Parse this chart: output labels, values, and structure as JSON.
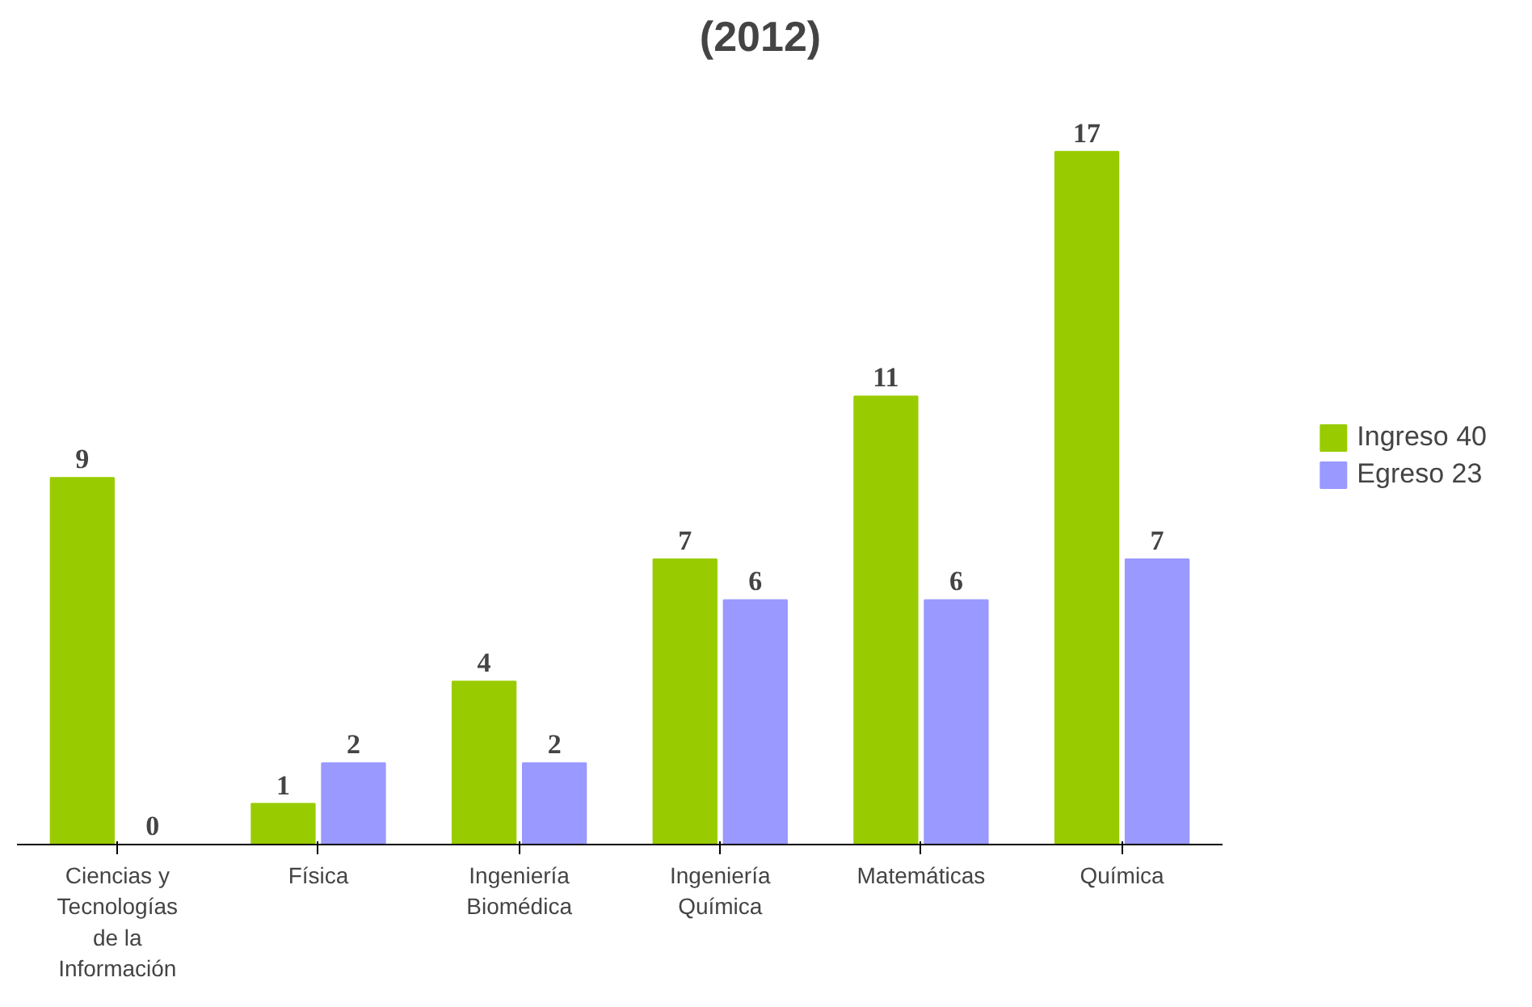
{
  "chart_data": {
    "type": "bar",
    "title": "(2012)",
    "categories": [
      "Ciencias y Tecnologías de la Información",
      "Física",
      "Ingeniería Biomédica",
      "Ingeniería Química",
      "Matemáticas",
      "Química"
    ],
    "series": [
      {
        "name": "Ingreso 40",
        "color": "#99cc00",
        "values": [
          9,
          1,
          4,
          7,
          11,
          17
        ]
      },
      {
        "name": "Egreso 23",
        "color": "#9999ff",
        "values": [
          0,
          2,
          2,
          6,
          6,
          7
        ]
      }
    ],
    "data_labels": true,
    "grid": false,
    "legend": "right"
  }
}
